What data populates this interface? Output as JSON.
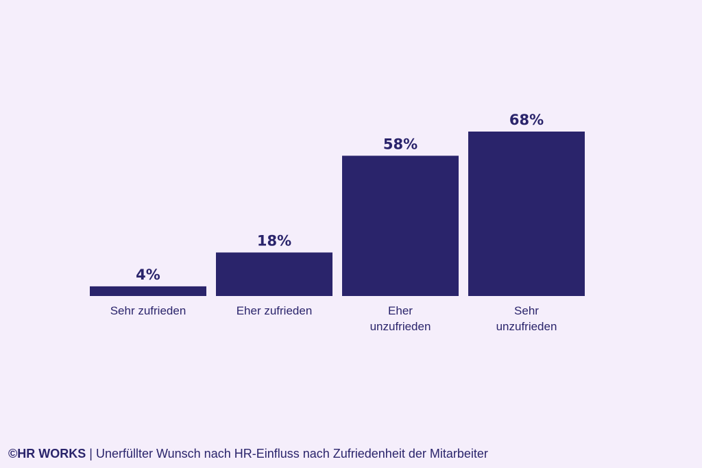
{
  "colors": {
    "background": "#f5eefb",
    "bar": "#2a246b",
    "text": "#2a246b"
  },
  "chart_data": {
    "type": "bar",
    "categories": [
      "Sehr zufrieden",
      "Eher zufrieden",
      "Eher unzufrieden",
      "Sehr unzufrieden"
    ],
    "category_lines": [
      [
        "Sehr zufrieden"
      ],
      [
        "Eher zufrieden"
      ],
      [
        "Eher",
        "unzufrieden"
      ],
      [
        "Sehr",
        "unzufrieden"
      ]
    ],
    "values": [
      4,
      18,
      58,
      68
    ],
    "value_labels": [
      "4%",
      "18%",
      "58%",
      "68%"
    ],
    "title": "",
    "xlabel": "",
    "ylabel": "",
    "ylim": [
      0,
      68
    ],
    "grid": false,
    "legend": "none"
  },
  "footer": {
    "copyright_symbol": "©",
    "brand": "HR WORKS",
    "separator": " | ",
    "caption": "Unerfüllter Wunsch nach HR-Einfluss nach Zufriedenheit der Mitarbeiter"
  }
}
